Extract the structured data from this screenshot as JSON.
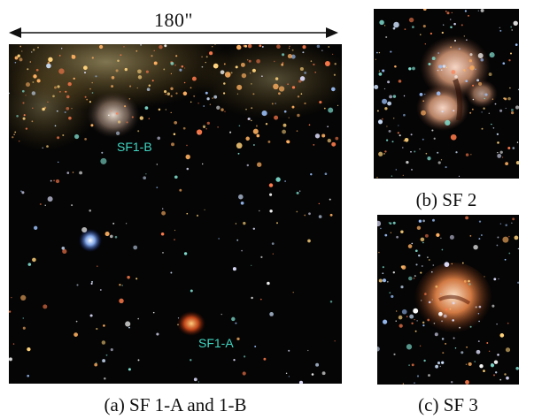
{
  "scale_bar": {
    "label": "180\""
  },
  "panels": {
    "a": {
      "caption": "(a) SF 1-A and 1-B",
      "labels": [
        "SF1-B",
        "SF1-A"
      ]
    },
    "b": {
      "caption": "(b) SF 2"
    },
    "c": {
      "caption": "(c) SF 3"
    }
  },
  "colors": {
    "label_cyan": "#3fd6c2",
    "background": "#050505",
    "nebula_orange": "#e07a3c",
    "nebula_pink": "#f0b8a8"
  }
}
